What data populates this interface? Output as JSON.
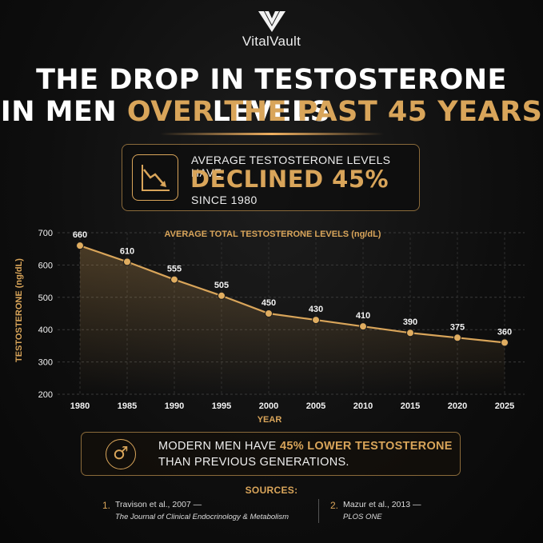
{
  "brand": {
    "name": "VitalVault"
  },
  "headline": {
    "line1": "THE DROP IN TESTOSTERONE LEVELS",
    "line2_white": "IN MEN ",
    "line2_gold": "OVER THE PAST 45 YEARS"
  },
  "stat": {
    "line1": "AVERAGE TESTOSTERONE LEVELS HAVE",
    "big": "DECLINED 45%",
    "line3": "SINCE 1980",
    "icon": "trend-down-icon"
  },
  "chart_data": {
    "type": "line",
    "title": "AVERAGE TOTAL TESTOSTERONE LEVELS (ng/dL)",
    "xlabel": "YEAR",
    "ylabel": "TESTOSTERONE (ng/dL)",
    "categories": [
      "1980",
      "1985",
      "1990",
      "1995",
      "2000",
      "2005",
      "2010",
      "2015",
      "2020",
      "2025"
    ],
    "values": [
      660,
      610,
      555,
      505,
      450,
      430,
      410,
      390,
      375,
      360
    ],
    "ylim": [
      200,
      700
    ],
    "yticks": [
      200,
      300,
      400,
      500,
      600,
      700
    ],
    "grid": true,
    "line_color": "#d9a55a"
  },
  "message": {
    "line1_pre": "MODERN MEN HAVE ",
    "line1_hl": "45% LOWER TESTOSTERONE",
    "line2": "THAN PREVIOUS GENERATIONS.",
    "icon": "male-symbol-icon"
  },
  "sources": {
    "title": "SOURCES:",
    "items": [
      {
        "num": "1.",
        "line1": "Travison et al., 2007 —",
        "line2": "The Journal of Clinical Endocrinology & Metabolism"
      },
      {
        "num": "2.",
        "line1": "Mazur et al., 2013 —",
        "line2": "PLOS ONE"
      }
    ]
  },
  "colors": {
    "accent": "#d9a55a",
    "background": "#0e0e0e"
  }
}
